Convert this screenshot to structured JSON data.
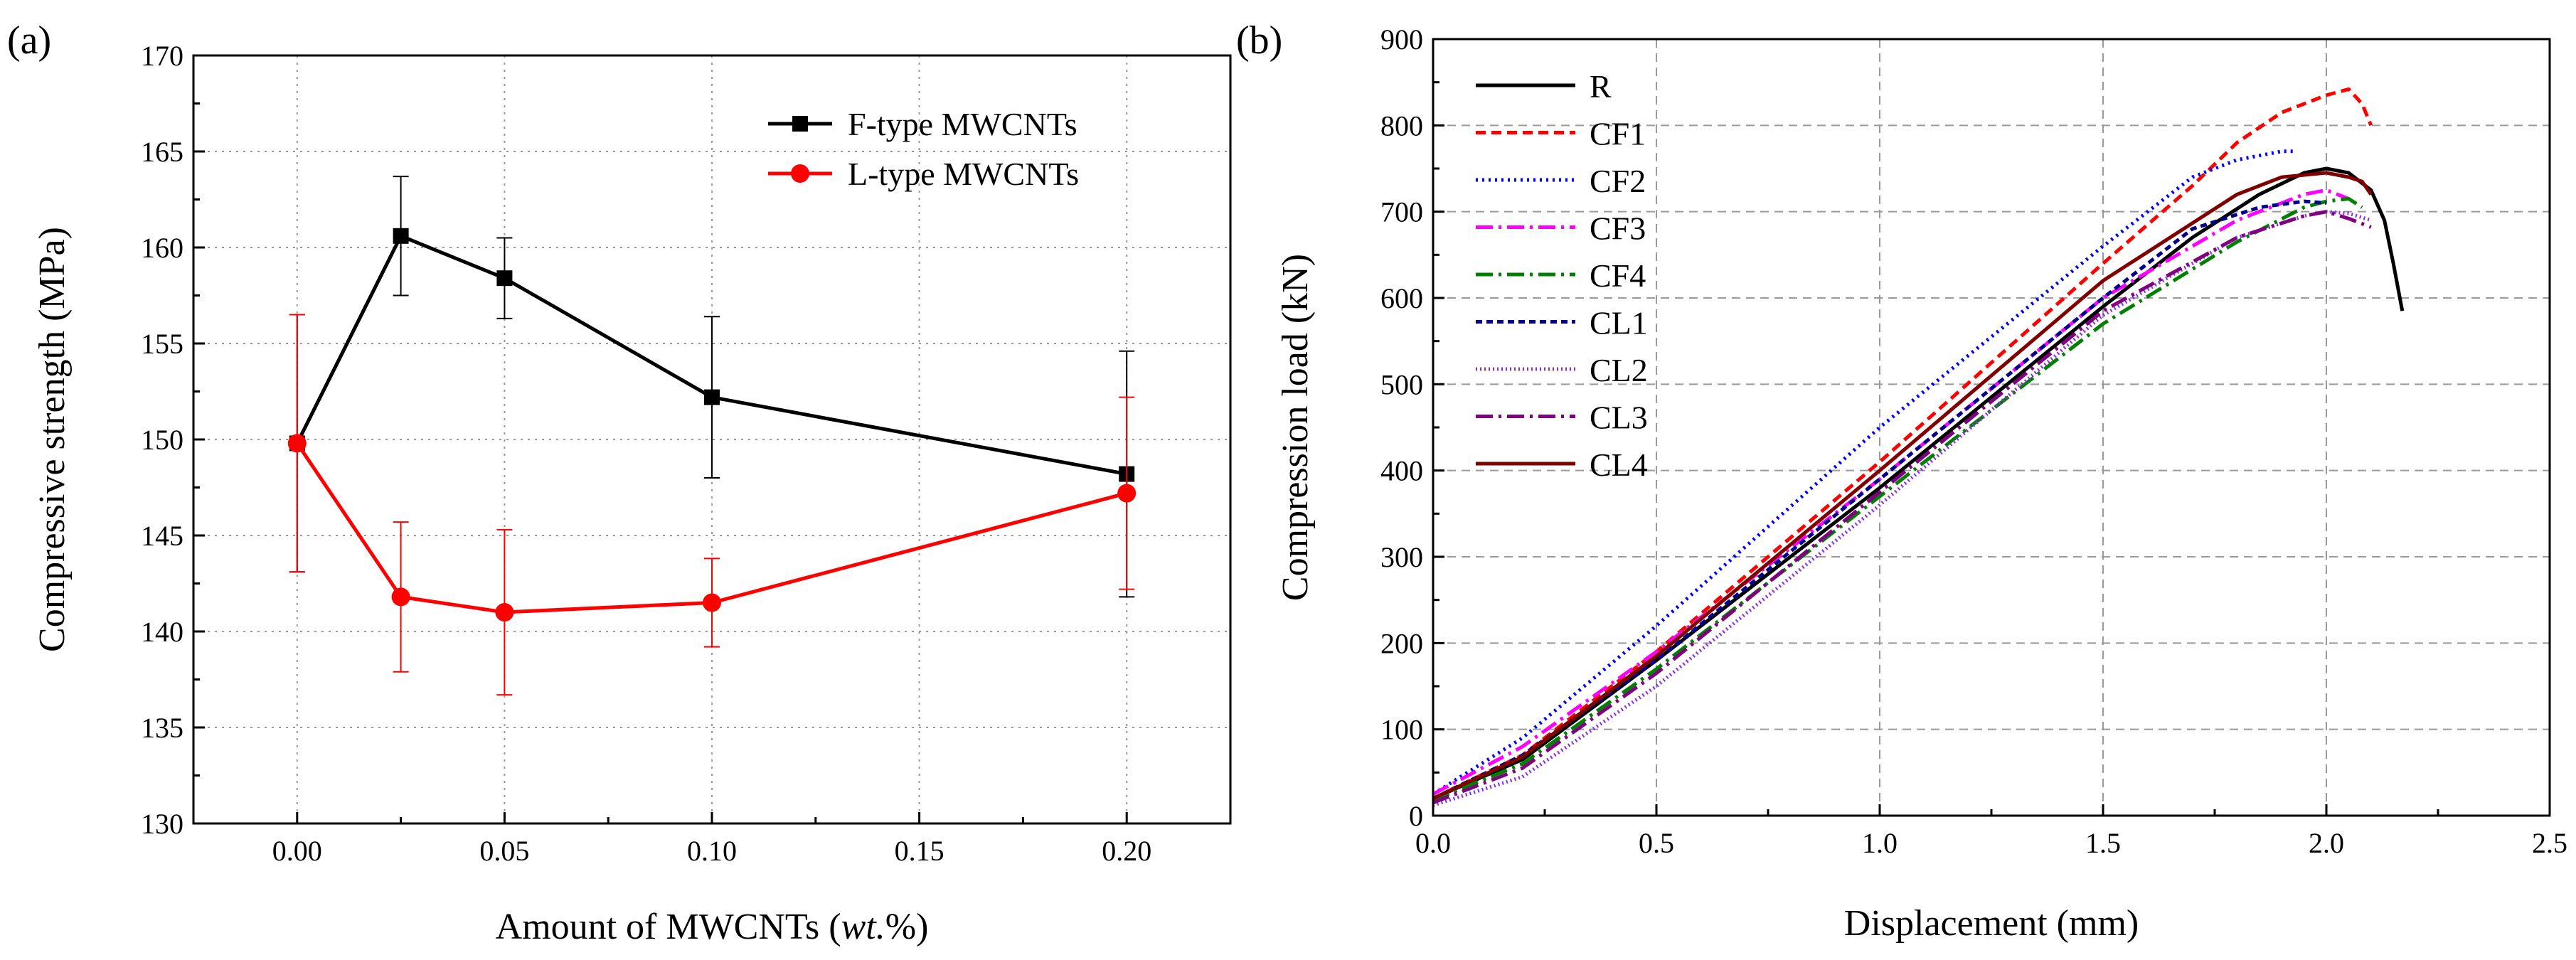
{
  "chart_data": [
    {
      "panel": "(a)",
      "type": "line",
      "xlabel_prefix": "Amount of MWCNTs (",
      "xlabel_italic": "wt.",
      "xlabel_suffix": "%)",
      "ylabel": "Compressive strength (MPa)",
      "xlim": [
        -0.025,
        0.225
      ],
      "ylim": [
        130,
        170
      ],
      "xticks": [
        0.0,
        0.05,
        0.1,
        0.15,
        0.2
      ],
      "xtick_labels": [
        "0.00",
        "0.05",
        "0.10",
        "0.15",
        "0.20"
      ],
      "yticks": [
        130,
        135,
        140,
        145,
        150,
        155,
        160,
        165,
        170
      ],
      "ytick_labels": [
        "130",
        "135",
        "140",
        "145",
        "150",
        "155",
        "160",
        "165",
        "170"
      ],
      "grid": true,
      "legend_position": "top-right",
      "series": [
        {
          "name": "F-type MWCNTs",
          "color": "#000000",
          "marker": "square",
          "x": [
            0.0,
            0.025,
            0.05,
            0.1,
            0.2
          ],
          "y": [
            149.8,
            160.6,
            158.4,
            152.2,
            148.2
          ],
          "err": [
            6.7,
            3.1,
            2.1,
            4.2,
            6.4
          ]
        },
        {
          "name": "L-type MWCNTs",
          "color": "#ff0000",
          "marker": "circle",
          "x": [
            0.0,
            0.025,
            0.05,
            0.1,
            0.2
          ],
          "y": [
            149.8,
            141.8,
            141.0,
            141.5,
            147.2
          ],
          "err": [
            6.7,
            3.9,
            4.3,
            2.3,
            5.0
          ]
        }
      ]
    },
    {
      "panel": "(b)",
      "type": "line",
      "xlabel": "Displacement (mm)",
      "ylabel": "Compression load (kN)",
      "xlim": [
        0,
        2.5
      ],
      "ylim": [
        0,
        900
      ],
      "xticks": [
        0,
        0.5,
        1.0,
        1.5,
        2.0,
        2.5
      ],
      "xtick_labels": [
        "0.0",
        "0.5",
        "1.0",
        "1.5",
        "2.0",
        "2.5"
      ],
      "yticks": [
        0,
        100,
        200,
        300,
        400,
        500,
        600,
        700,
        800,
        900
      ],
      "ytick_labels": [
        "0",
        "100",
        "200",
        "300",
        "400",
        "500",
        "600",
        "700",
        "800",
        "900"
      ],
      "grid": true,
      "legend_position": "top-left",
      "series": [
        {
          "name": "R",
          "color": "#000000",
          "dash": "",
          "x": [
            0,
            0.2,
            0.5,
            1.0,
            1.5,
            1.7,
            1.85,
            1.95,
            2.0,
            2.05,
            2.1,
            2.13,
            2.15,
            2.17
          ],
          "y": [
            20,
            65,
            180,
            380,
            590,
            670,
            720,
            745,
            750,
            745,
            725,
            690,
            640,
            585
          ]
        },
        {
          "name": "CF1",
          "color": "#ff0000",
          "dash": "14 8",
          "x": [
            0,
            0.2,
            0.5,
            1.0,
            1.5,
            1.7,
            1.8,
            1.9,
            2.0,
            2.05,
            2.08,
            2.1
          ],
          "y": [
            20,
            70,
            190,
            410,
            640,
            730,
            780,
            815,
            835,
            842,
            825,
            800
          ]
        },
        {
          "name": "CF2",
          "color": "#0000ff",
          "dash": "3 6",
          "x": [
            0,
            0.2,
            0.5,
            1.0,
            1.5,
            1.7,
            1.8,
            1.9,
            1.93
          ],
          "y": [
            25,
            90,
            220,
            450,
            660,
            740,
            760,
            770,
            770
          ]
        },
        {
          "name": "CF3",
          "color": "#ff00ff",
          "dash": "24 8 4 8",
          "x": [
            0,
            0.2,
            0.5,
            1.0,
            1.5,
            1.8,
            1.95,
            2.0,
            2.05
          ],
          "y": [
            25,
            80,
            190,
            390,
            600,
            690,
            720,
            725,
            715
          ]
        },
        {
          "name": "CF4",
          "color": "#008000",
          "dash": "24 8 4 8",
          "x": [
            0,
            0.2,
            0.5,
            1.0,
            1.5,
            1.8,
            1.95,
            2.0,
            2.05,
            2.08
          ],
          "y": [
            18,
            60,
            170,
            370,
            570,
            665,
            705,
            712,
            715,
            705
          ]
        },
        {
          "name": "CL1",
          "color": "#00008b",
          "dash": "9 6",
          "x": [
            0,
            0.2,
            0.5,
            1.0,
            1.5,
            1.7,
            1.85,
            1.95,
            2.0
          ],
          "y": [
            20,
            70,
            180,
            390,
            600,
            680,
            705,
            712,
            710
          ]
        },
        {
          "name": "CL2",
          "color": "#8a2be2",
          "dash": "2 4",
          "x": [
            0,
            0.2,
            0.5,
            1.0,
            1.5,
            1.8,
            1.95,
            2.0,
            2.05,
            2.1
          ],
          "y": [
            12,
            45,
            150,
            360,
            580,
            670,
            695,
            700,
            698,
            690
          ]
        },
        {
          "name": "CL3",
          "color": "#800080",
          "dash": "24 8 4 8",
          "x": [
            0,
            0.2,
            0.5,
            1.0,
            1.5,
            1.8,
            1.95,
            2.0,
            2.05,
            2.1
          ],
          "y": [
            15,
            55,
            165,
            375,
            585,
            670,
            695,
            700,
            692,
            682
          ]
        },
        {
          "name": "CL4",
          "color": "#800000",
          "dash": "",
          "x": [
            0,
            0.2,
            0.5,
            1.0,
            1.5,
            1.8,
            1.9,
            2.0,
            2.05,
            2.08,
            2.1
          ],
          "y": [
            20,
            68,
            185,
            400,
            620,
            720,
            740,
            745,
            740,
            735,
            720
          ]
        }
      ]
    }
  ]
}
